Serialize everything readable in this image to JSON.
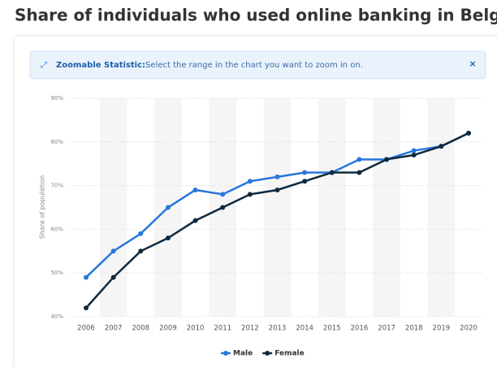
{
  "chart_data": {
    "type": "line",
    "title": "Share of individuals who used online banking in Belgium",
    "banner_label": "Zoomable Statistic:",
    "banner_text": "Select the range in the chart you want to zoom in on.",
    "banner_close": "×",
    "y_label": "Share of population",
    "categories": [
      "2006",
      "2007",
      "2008",
      "2009",
      "2010",
      "2011",
      "2012",
      "2013",
      "2014",
      "2015",
      "2016",
      "2017",
      "2018",
      "2019",
      "2020"
    ],
    "series": [
      {
        "name": "Male",
        "color": "#2876dd",
        "values": [
          49,
          55,
          59,
          65,
          69,
          68,
          71,
          72,
          73,
          73,
          76,
          76,
          78,
          79,
          82
        ]
      },
      {
        "name": "Female",
        "color": "#0f2a3f",
        "values": [
          42,
          49,
          55,
          58,
          62,
          65,
          68,
          69,
          71,
          73,
          73,
          76,
          77,
          79,
          82
        ]
      }
    ],
    "ylim": [
      40,
      90
    ],
    "yticks": [
      {
        "value": 40,
        "label": "40%"
      },
      {
        "value": 50,
        "label": "50%"
      },
      {
        "value": 60,
        "label": "60%"
      },
      {
        "value": 70,
        "label": "70%"
      },
      {
        "value": 80,
        "label": "80%"
      },
      {
        "value": 90,
        "label": "90%"
      }
    ],
    "grid": true,
    "legend": "bottom"
  }
}
